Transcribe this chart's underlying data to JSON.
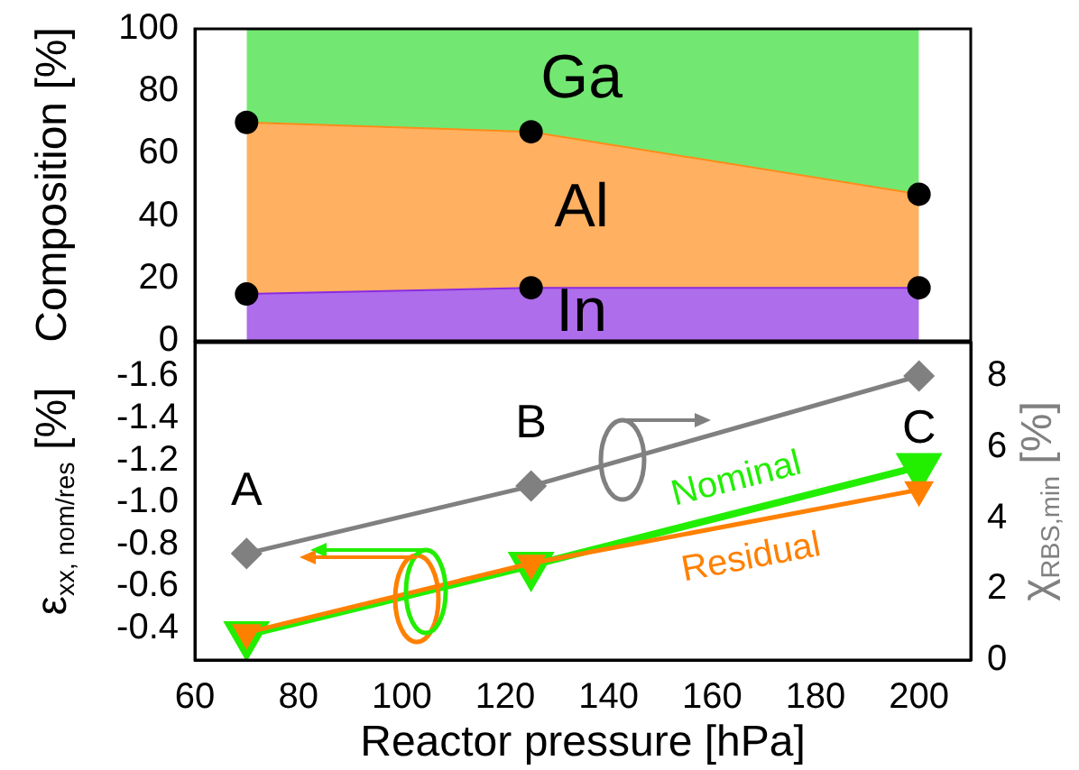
{
  "chart_data": [
    {
      "type": "area",
      "stacked": true,
      "ylabel": "Composition [%]",
      "x": [
        70,
        125,
        200
      ],
      "xlim": [
        60,
        210
      ],
      "xticks": [
        60,
        80,
        100,
        120,
        140,
        160,
        180,
        200
      ],
      "ylim": [
        0,
        100
      ],
      "yticks": [
        0,
        20,
        40,
        60,
        80,
        100
      ],
      "tick_labels": "y",
      "series": [
        {
          "name": "In",
          "color": "#8a2be2",
          "marker": "circle",
          "values": [
            15,
            17,
            17
          ]
        },
        {
          "name": "Al",
          "color": "#ff8c1a",
          "marker": "circle",
          "values": [
            55,
            50,
            30
          ]
        },
        {
          "name": "Ga",
          "color": "#33dd33",
          "marker": "none",
          "values": [
            30,
            33,
            53
          ]
        }
      ]
    },
    {
      "type": "line",
      "x": [
        70,
        125,
        200
      ],
      "xlabel": "Reactor pressure [hPa]",
      "ylabel": "ε$_{xx, nom/res}$ [%]",
      "y2label": "χ$_{RBS,min}$ [%]",
      "xlim": [
        60,
        210
      ],
      "xticks": [
        60,
        80,
        100,
        120,
        140,
        160,
        180,
        200
      ],
      "ylim": [
        -0.25,
        -1.76
      ],
      "yticks": [
        -1.6,
        -1.4,
        -1.2,
        {
          "value": -1.0,
          "label": "-1.0"
        },
        -0.8,
        -0.6,
        -0.4
      ],
      "y2lim": [
        0,
        8.94
      ],
      "y2ticks": [
        0,
        2,
        4,
        6,
        8
      ],
      "annotations": [
        "A",
        "B",
        "C"
      ],
      "series": [
        {
          "name": "Nominal",
          "color": "#22ee00",
          "marker": "triangle",
          "values": [
            -0.37,
            -0.7,
            -1.17
          ]
        },
        {
          "name": "Residual",
          "color": "#ff8000",
          "marker": "triangle",
          "values": [
            -0.38,
            -0.71,
            -1.06
          ]
        },
        {
          "color": "#808080",
          "marker": "diamond",
          "axis": "y2",
          "values": [
            3.0,
            4.9,
            8.0
          ]
        }
      ]
    }
  ]
}
